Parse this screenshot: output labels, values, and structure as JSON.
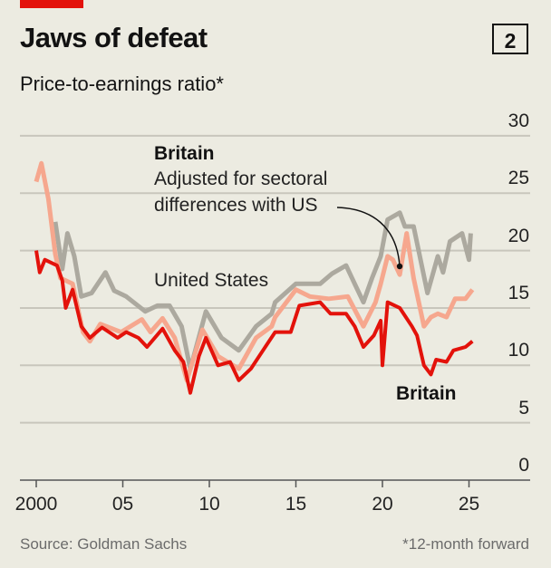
{
  "header": {
    "title": "Jaws of defeat",
    "chart_number": "2",
    "subtitle": "Price-to-earnings ratio*"
  },
  "footer": {
    "source": "Source: Goldman Sachs",
    "note": "*12-month forward"
  },
  "annotations": {
    "britain_adjusted_title": "Britain",
    "britain_adjusted_line1": "Adjusted for sectoral",
    "britain_adjusted_line2": "differences with US",
    "us_label": "United States",
    "britain_label": "Britain"
  },
  "colors": {
    "britain": "#e3120b",
    "britain_adjusted": "#f6a78e",
    "us": "#aca99f",
    "grid": "#c8c6bc"
  },
  "chart_data": {
    "type": "line",
    "title": "Jaws of defeat",
    "ylabel": "Price-to-earnings ratio*",
    "xlabel": "",
    "ylim": [
      0,
      30
    ],
    "xlim": [
      2000,
      2025.5
    ],
    "yticks": [
      0,
      5,
      10,
      15,
      20,
      25,
      30
    ],
    "ytick_labels": [
      "0",
      "5",
      "10",
      "15",
      "20",
      "25",
      "30"
    ],
    "xticks": [
      2000,
      2005,
      2010,
      2015,
      2020,
      2025
    ],
    "xtick_labels": [
      "2000",
      "05",
      "10",
      "15",
      "20",
      "25"
    ],
    "grid": true,
    "series": [
      {
        "name": "United States",
        "key": "us",
        "x": [
          2001.1,
          2001.5,
          2001.8,
          2002.2,
          2002.6,
          2003.2,
          2004.0,
          2004.5,
          2005.2,
          2006.3,
          2007.0,
          2007.7,
          2008.4,
          2008.9,
          2009.8,
          2010.7,
          2011.7,
          2012.7,
          2013.6,
          2013.8,
          2015.0,
          2016.4,
          2017.1,
          2017.9,
          2018.4,
          2018.9,
          2019.4,
          2019.9,
          2020.3,
          2021.0,
          2021.3,
          2021.8,
          2022.6,
          2023.2,
          2023.5,
          2023.9,
          2024.6,
          2025.0,
          2025.1
        ],
        "y": [
          22.5,
          18.4,
          21.5,
          19.5,
          16.0,
          16.3,
          18.1,
          16.5,
          16.0,
          14.7,
          15.2,
          15.2,
          13.4,
          9.7,
          14.7,
          12.4,
          11.3,
          13.4,
          14.5,
          15.5,
          17.1,
          17.1,
          18.0,
          18.7,
          17.1,
          15.5,
          17.6,
          19.5,
          22.7,
          23.3,
          22.1,
          22.1,
          16.3,
          19.5,
          18.1,
          20.8,
          21.5,
          19.2,
          21.5
        ]
      },
      {
        "name": "Britain (adjusted for sectoral differences with US)",
        "key": "britain_adjusted",
        "x": [
          2000.0,
          2000.3,
          2000.7,
          2001.1,
          2001.4,
          2002.1,
          2002.7,
          2003.1,
          2003.7,
          2004.9,
          2006.1,
          2006.6,
          2007.3,
          2008.0,
          2008.7,
          2009.6,
          2010.5,
          2011.7,
          2012.7,
          2013.6,
          2013.8,
          2015.0,
          2015.8,
          2016.9,
          2018.0,
          2018.9,
          2019.6,
          2019.9,
          2020.3,
          2020.6,
          2021.0,
          2021.4,
          2021.8,
          2022.4,
          2022.8,
          2023.2,
          2023.7,
          2024.2,
          2024.8,
          2025.2
        ],
        "y": [
          26.0,
          27.6,
          24.5,
          19.7,
          17.6,
          17.1,
          12.9,
          12.1,
          13.6,
          12.9,
          14.0,
          12.9,
          14.1,
          12.4,
          8.7,
          13.1,
          10.8,
          9.7,
          12.4,
          13.4,
          14.2,
          16.6,
          16.0,
          15.8,
          16.0,
          13.4,
          15.5,
          17.1,
          19.5,
          19.2,
          17.9,
          21.5,
          17.6,
          13.4,
          14.2,
          14.5,
          14.2,
          15.8,
          15.8,
          16.6
        ]
      },
      {
        "name": "Britain",
        "key": "britain",
        "x": [
          2000.0,
          2000.2,
          2000.5,
          2001.2,
          2001.5,
          2001.7,
          2002.1,
          2002.6,
          2003.1,
          2003.8,
          2004.7,
          2005.2,
          2005.9,
          2006.4,
          2007.3,
          2008.0,
          2008.5,
          2008.9,
          2009.4,
          2009.8,
          2010.5,
          2011.2,
          2011.7,
          2012.4,
          2013.1,
          2013.8,
          2014.7,
          2015.2,
          2016.4,
          2017.0,
          2017.9,
          2018.4,
          2018.9,
          2019.5,
          2019.9,
          2020.0,
          2020.3,
          2021.0,
          2021.7,
          2022.0,
          2022.4,
          2022.8,
          2023.1,
          2023.7,
          2024.1,
          2024.8,
          2025.2
        ],
        "y": [
          20.0,
          18.1,
          19.2,
          18.7,
          17.4,
          15.0,
          16.6,
          13.4,
          12.4,
          13.3,
          12.4,
          12.9,
          12.4,
          11.6,
          13.2,
          11.3,
          10.3,
          7.6,
          10.8,
          12.4,
          10.0,
          10.3,
          8.7,
          9.7,
          11.3,
          12.9,
          12.9,
          15.2,
          15.5,
          14.5,
          14.5,
          13.4,
          11.6,
          12.6,
          13.9,
          10.0,
          15.5,
          15.0,
          13.4,
          12.6,
          10.0,
          9.2,
          10.5,
          10.3,
          11.3,
          11.6,
          12.1
        ]
      }
    ]
  }
}
